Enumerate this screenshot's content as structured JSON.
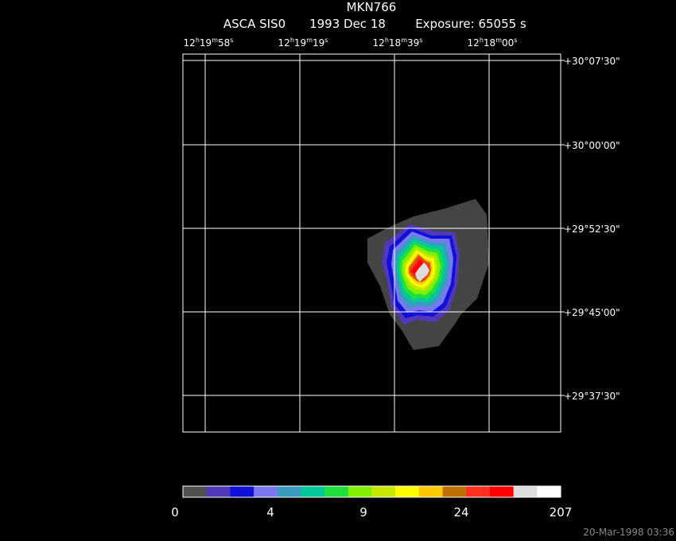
{
  "header": {
    "title": "MKN766",
    "instrument": "ASCA SIS0",
    "date": "1993 Dec 18",
    "exposure": "Exposure: 65055 s"
  },
  "ra_labels": [
    [
      "12",
      "h",
      "19",
      "m",
      "58",
      "s"
    ],
    [
      "12",
      "h",
      "19",
      "m",
      "19",
      "s"
    ],
    [
      "12",
      "h",
      "18",
      "m",
      "39",
      "s"
    ],
    [
      "12",
      "h",
      "18",
      "m",
      "00",
      "s"
    ]
  ],
  "dec_labels": [
    "+30°07'30\"",
    "+30°00'00\"",
    "+29°52'30\"",
    "+29°45'00\"",
    "+29°37'30\""
  ],
  "colorbar": {
    "labels": [
      "0",
      "4",
      "9",
      "24",
      "207"
    ]
  },
  "footer": {
    "timestamp": "20-Mar-1998 03:36"
  }
}
